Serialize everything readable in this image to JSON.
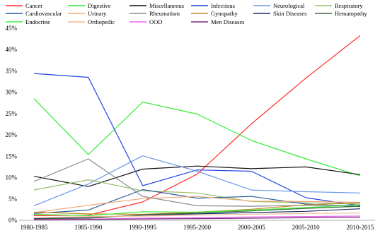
{
  "chart_data": {
    "type": "line",
    "title": "",
    "xlabel": "",
    "ylabel": "",
    "x": [
      "1980-1985",
      "1985-1990",
      "1990-1995",
      "1995-2000",
      "2000-2005",
      "2005-2010",
      "2010-2015"
    ],
    "y_ticks": [
      "0%",
      "5%",
      "10%",
      "15%",
      "20%",
      "25%",
      "30%",
      "35%",
      "40%",
      "45%"
    ],
    "ylim": [
      0,
      45
    ],
    "grid": false,
    "legend_position": "top",
    "series": [
      {
        "name": "Cancer",
        "color": "#ff2a2a",
        "values": [
          1.1,
          1.2,
          4.3,
          10.8,
          22.6,
          33.3,
          43.3
        ]
      },
      {
        "name": "Digestive",
        "color": "#33ee33",
        "values": [
          28.5,
          15.4,
          27.7,
          24.9,
          18.7,
          14.4,
          10.4
        ]
      },
      {
        "name": "Miscellaneous",
        "color": "#111111",
        "values": [
          10.3,
          7.9,
          12.0,
          12.7,
          12.1,
          12.5,
          10.7
        ]
      },
      {
        "name": "Infectious",
        "color": "#2244dd",
        "values": [
          34.4,
          33.5,
          8.1,
          11.8,
          11.5,
          5.3,
          3.4
        ]
      },
      {
        "name": "Neurological",
        "color": "#6a96e8",
        "values": [
          3.4,
          8.5,
          15.1,
          11.5,
          7.1,
          6.7,
          6.4
        ]
      },
      {
        "name": "Respiratory",
        "color": "#98c068",
        "values": [
          7.1,
          9.5,
          6.9,
          6.4,
          4.4,
          4.1,
          3.8
        ]
      },
      {
        "name": "Cardiovascular",
        "color": "#2a5a9a",
        "values": [
          1.6,
          2.4,
          7.2,
          5.2,
          5.6,
          3.8,
          3.2
        ]
      },
      {
        "name": "Urinary",
        "color": "#f0a878",
        "values": [
          1.8,
          3.5,
          5.1,
          5.6,
          4.5,
          4.4,
          4.2
        ]
      },
      {
        "name": "Rheumatism",
        "color": "#8a8a8a",
        "values": [
          9.1,
          14.4,
          5.6,
          3.4,
          3.3,
          3.5,
          3.5
        ]
      },
      {
        "name": "Gynopathy",
        "color": "#c08a28",
        "values": [
          1.9,
          1.5,
          1.4,
          1.9,
          2.6,
          3.6,
          4.1
        ]
      },
      {
        "name": "Skin Diseases",
        "color": "#1a2a66",
        "values": [
          0.4,
          0.6,
          1.2,
          1.5,
          1.8,
          2.1,
          2.7
        ]
      },
      {
        "name": "Hematopathy",
        "color": "#3a6a3a",
        "values": [
          0.3,
          0.5,
          1.3,
          1.7,
          2.2,
          2.8,
          3.3
        ]
      },
      {
        "name": "Endocrine",
        "color": "#44ee44",
        "values": [
          1.4,
          1.1,
          2.0,
          1.9,
          2.4,
          3.0,
          3.6
        ]
      },
      {
        "name": "Orthopedic",
        "color": "#f2b694",
        "values": [
          0.6,
          0.9,
          1.0,
          1.2,
          1.4,
          1.6,
          1.7
        ]
      },
      {
        "name": "OOD",
        "color": "#ee66ee",
        "values": [
          0.2,
          0.3,
          0.5,
          0.6,
          0.8,
          0.9,
          1.0
        ]
      },
      {
        "name": "Men Diseases",
        "color": "#7a2a7a",
        "values": [
          0.1,
          0.2,
          0.3,
          0.4,
          0.5,
          0.6,
          0.7
        ]
      }
    ]
  }
}
